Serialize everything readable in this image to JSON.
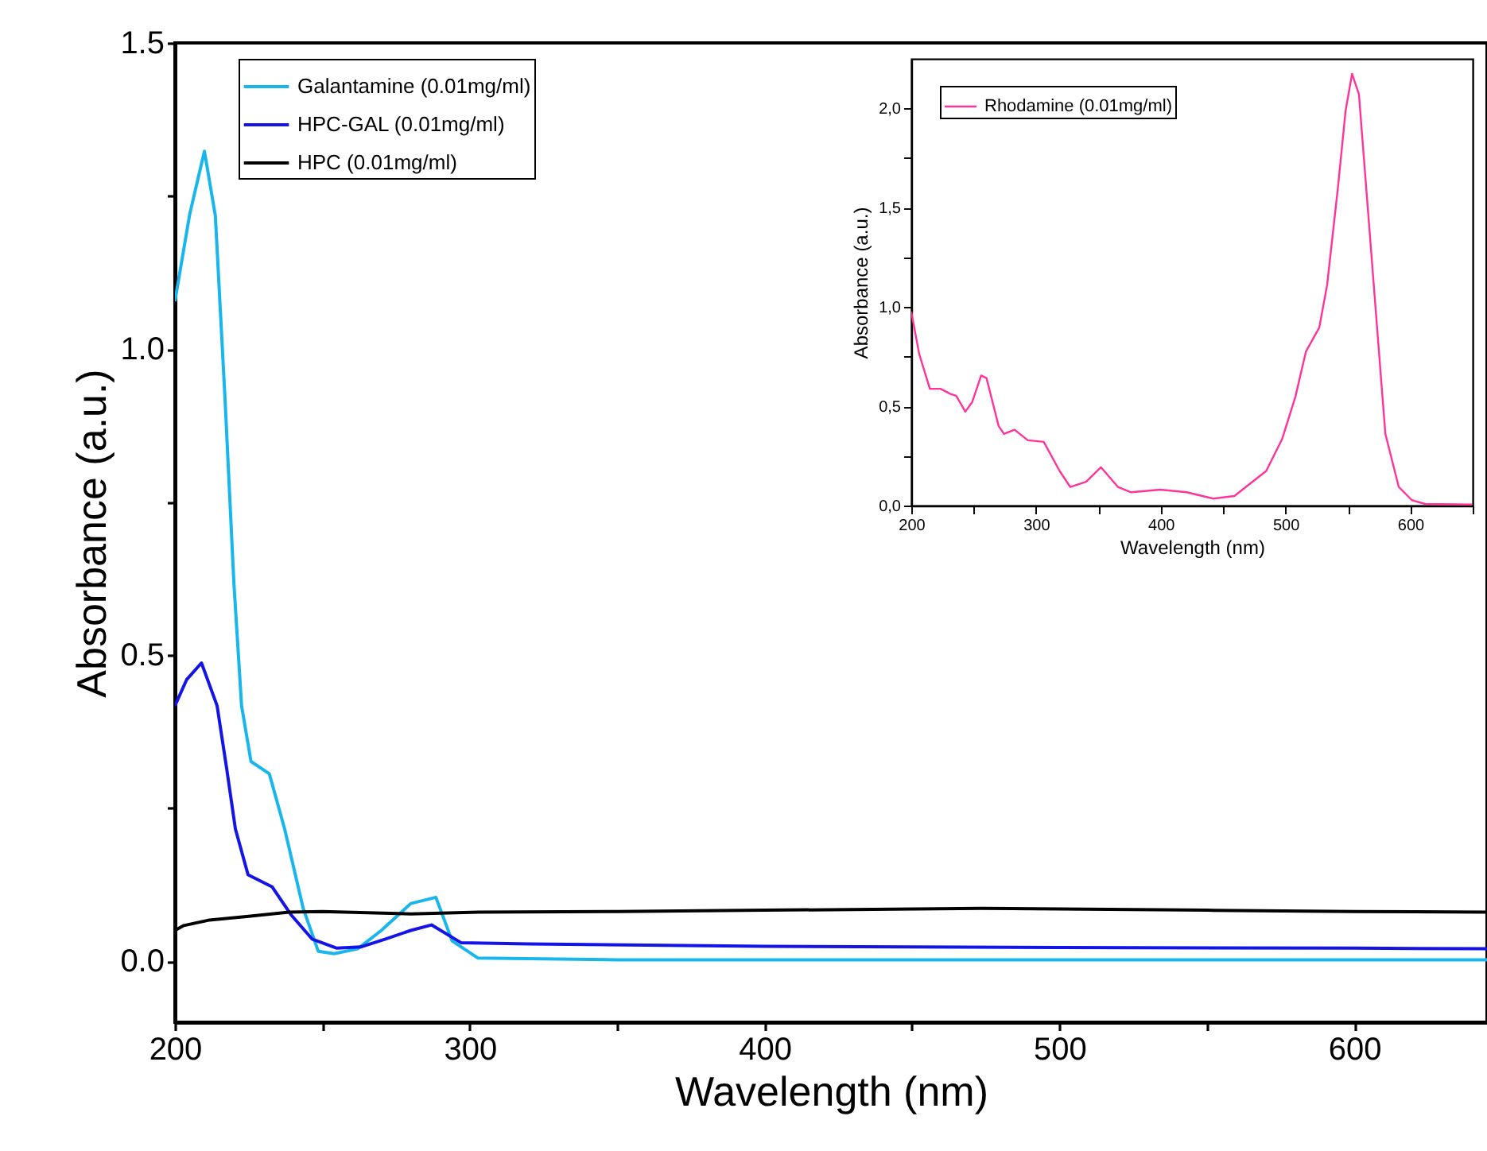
{
  "chart_data": [
    {
      "type": "line",
      "xlabel": "Wavelength (nm)",
      "ylabel": "Absorbance (a.u.)",
      "xlim": [
        200,
        645
      ],
      "ylim": [
        -0.1,
        1.5
      ],
      "xticks": [
        200,
        {
          "value": 250,
          "label": null
        },
        300,
        {
          "value": 350,
          "label": null
        },
        400,
        {
          "value": 450,
          "label": null
        },
        500,
        {
          "value": 550,
          "label": null
        },
        600
      ],
      "yticks": [
        {
          "value": 0,
          "label": "0.0"
        },
        {
          "value": 0.25,
          "label": null
        },
        {
          "value": 0.5,
          "label": "0.5"
        },
        {
          "value": 0.75,
          "label": null
        },
        {
          "value": 1,
          "label": "1.0"
        },
        {
          "value": 1.25,
          "label": null
        },
        {
          "value": 1.5,
          "label": "1.5"
        }
      ],
      "legend": "top left",
      "series": [
        {
          "name": "Galantamine (0.01mg/ml)",
          "color": "#19b6ee",
          "x": [
            200,
            205,
            210,
            213.7,
            217,
            220,
            222.6,
            225.8,
            232,
            237.2,
            243.5,
            248.6,
            254,
            262,
            270,
            280,
            288.5,
            294,
            302.7,
            350,
            400,
            450,
            500,
            550,
            600,
            645
          ],
          "values": [
            1.078,
            1.22,
            1.323,
            1.218,
            0.917,
            0.617,
            0.417,
            0.326,
            0.306,
            0.216,
            0.086,
            0.016,
            0.012,
            0.02,
            0.05,
            0.094,
            0.104,
            0.033,
            0.005,
            0.002,
            0.002,
            0.002,
            0.002,
            0.002,
            0.002,
            0.002
          ]
        },
        {
          "name": "HPC-GAL (0.01mg/ml)",
          "color": "#1414e6",
          "x": [
            200,
            204,
            209,
            214.3,
            217.5,
            220.5,
            224.8,
            233,
            239.3,
            246.5,
            254.9,
            263,
            271.4,
            280,
            287,
            297,
            320,
            400,
            500,
            600,
            645
          ],
          "values": [
            0.417,
            0.46,
            0.487,
            0.417,
            0.316,
            0.216,
            0.141,
            0.121,
            0.076,
            0.036,
            0.021,
            0.023,
            0.036,
            0.05,
            0.059,
            0.03,
            0.028,
            0.024,
            0.022,
            0.021,
            0.02
          ]
        },
        {
          "name": "HPC (0.01mg/ml)",
          "color": "#000000",
          "x": [
            200,
            203,
            211.7,
            225,
            238.7,
            250,
            280,
            303,
            350,
            400,
            473.4,
            550,
            600,
            645
          ],
          "values": [
            0.05,
            0.058,
            0.067,
            0.073,
            0.08,
            0.081,
            0.077,
            0.08,
            0.081,
            0.083,
            0.086,
            0.083,
            0.081,
            0.08
          ]
        }
      ]
    },
    {
      "type": "line",
      "xlabel": "Wavelength (nm)",
      "ylabel": "Absorbance (a.u.)",
      "xlim": [
        200,
        650
      ],
      "ylim": [
        0,
        2.25
      ],
      "xticks": [
        200,
        {
          "value": 250,
          "label": null
        },
        300,
        {
          "value": 350,
          "label": null
        },
        400,
        {
          "value": 450,
          "label": null
        },
        500,
        {
          "value": 550,
          "label": null
        },
        600,
        {
          "value": 650,
          "label": null
        }
      ],
      "yticks": [
        {
          "value": 0,
          "label": "0,0"
        },
        {
          "value": 0.25,
          "label": null
        },
        {
          "value": 0.5,
          "label": "0,5"
        },
        {
          "value": 0.75,
          "label": null
        },
        {
          "value": 1,
          "label": "1,0"
        },
        {
          "value": 1.25,
          "label": null
        },
        {
          "value": 1.5,
          "label": "1,5"
        },
        {
          "value": 1.75,
          "label": null
        },
        {
          "value": 2,
          "label": "2,0"
        }
      ],
      "legend": "top left",
      "series": [
        {
          "name": "Rhodamine (0.01mg/ml)",
          "color": "#ff3399",
          "x": [
            200,
            206.4,
            214.9,
            223.4,
            231.8,
            236,
            243.3,
            248.8,
            256,
            260.3,
            270,
            274.3,
            282.8,
            293.4,
            306.2,
            318.9,
            327.4,
            340.1,
            352,
            365.6,
            376.2,
            399.6,
            420.8,
            442,
            459,
            484.5,
            497.2,
            507.9,
            516.3,
            527,
            533.3,
            541.8,
            548.2,
            553.3,
            558.8,
            569.4,
            580,
            590.7,
            601.3,
            611.9,
            649.3
          ],
          "values": [
            0.976,
            0.762,
            0.588,
            0.588,
            0.561,
            0.553,
            0.473,
            0.521,
            0.655,
            0.642,
            0.401,
            0.361,
            0.382,
            0.329,
            0.321,
            0.174,
            0.094,
            0.12,
            0.193,
            0.094,
            0.067,
            0.08,
            0.067,
            0.035,
            0.048,
            0.174,
            0.334,
            0.548,
            0.775,
            0.896,
            1.11,
            1.591,
            1.992,
            2.174,
            2.072,
            1.217,
            0.361,
            0.094,
            0.027,
            0.008,
            0.005
          ]
        }
      ]
    }
  ]
}
